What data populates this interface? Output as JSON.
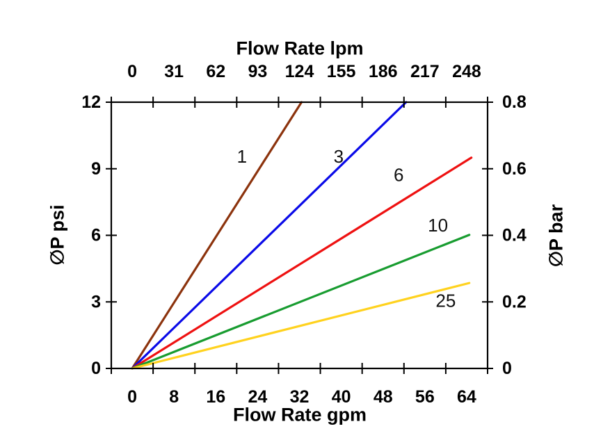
{
  "chart_data": {
    "type": "line",
    "background": "#ffffff",
    "axis_color": "#000000",
    "grid": false,
    "legend": "inline-labels-on-lines",
    "top_axis": {
      "title": "Flow Rate lpm",
      "unit": "lpm",
      "tick_labels": [
        "0",
        "31",
        "62",
        "93",
        "124",
        "155",
        "186",
        "217",
        "248"
      ]
    },
    "bottom_axis": {
      "title": "Flow Rate gpm",
      "unit": "gpm",
      "tick_labels": [
        "0",
        "8",
        "16",
        "24",
        "32",
        "40",
        "48",
        "56",
        "64"
      ],
      "gpm_per_category": 8
    },
    "left_axis": {
      "title": "∅P psi",
      "unit": "psi",
      "tick_labels": [
        "0",
        "3",
        "6",
        "9",
        "12"
      ],
      "min": 0,
      "max": 12
    },
    "right_axis": {
      "title": "∅P bar",
      "unit": "bar",
      "tick_labels": [
        "0",
        "0.2",
        "0.4",
        "0.6",
        "0.8"
      ],
      "min": 0,
      "max": 0.8
    },
    "series": [
      {
        "name": "1",
        "color": "#8C330D",
        "points_gpm_psi": [
          [
            0,
            0
          ],
          [
            32.4,
            12
          ]
        ],
        "label_at_gpm_psi": [
          21,
          9.55
        ]
      },
      {
        "name": "3",
        "color": "#0A0AE8",
        "points_gpm_psi": [
          [
            0,
            0
          ],
          [
            52.4,
            12
          ]
        ],
        "label_at_gpm_psi": [
          39.5,
          9.55
        ]
      },
      {
        "name": "6",
        "color": "#EE1111",
        "points_gpm_psi": [
          [
            0,
            0
          ],
          [
            64.9,
            9.5
          ]
        ],
        "label_at_gpm_psi": [
          51,
          8.72
        ]
      },
      {
        "name": "10",
        "color": "#189C30",
        "points_gpm_psi": [
          [
            0,
            0
          ],
          [
            64.5,
            6.02
          ]
        ],
        "label_at_gpm_psi": [
          58.5,
          6.45
        ]
      },
      {
        "name": "25",
        "color": "#FFD21E",
        "points_gpm_psi": [
          [
            0,
            0
          ],
          [
            64.5,
            3.85
          ]
        ],
        "label_at_gpm_psi": [
          60,
          3.05
        ]
      }
    ]
  }
}
